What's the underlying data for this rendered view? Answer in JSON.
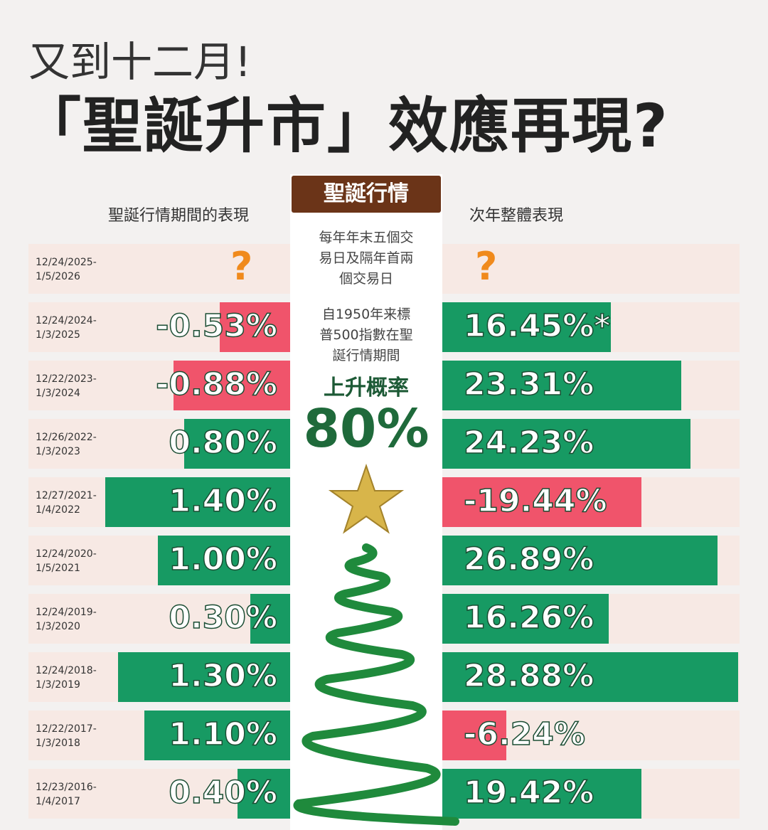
{
  "chart_data": {
    "type": "bar",
    "title": "又到十二月!",
    "subtitle": "「聖誕升市」效應再現?",
    "center_header": "聖誕行情",
    "center_note": "每年年末五個交易日及隔年首兩個交易日",
    "center_note_2": "自1950年来標普500指數在聖誕行情期間",
    "center_stat_label": "上升概率",
    "center_stat": "80%",
    "categories": [
      "12/24/2025-1/5/2026",
      "12/24/2024-1/3/2025",
      "12/22/2023-1/3/2024",
      "12/26/2022-1/3/2023",
      "12/27/2021-1/4/2022",
      "12/24/2020-1/5/2021",
      "12/24/2019-1/3/2020",
      "12/24/2018-1/3/2019",
      "12/22/2017-1/3/2018",
      "12/23/2016-1/4/2017"
    ],
    "series": [
      {
        "name": "聖誕行情期間的表現",
        "color": "#179a63",
        "negative_color": "#f0546b",
        "values": [
          null,
          -0.53,
          -0.88,
          0.8,
          1.4,
          1.0,
          0.3,
          1.3,
          1.1,
          0.4
        ],
        "value_labels": [
          "?",
          "-0.53%",
          "-0.88%",
          "0.80%",
          "1.40%",
          "1.00%",
          "0.30%",
          "1.30%",
          "1.10%",
          "0.40%"
        ]
      },
      {
        "name": "次年整體表現",
        "color": "#179a63",
        "negative_color": "#f0546b",
        "values": [
          null,
          16.45,
          23.31,
          24.23,
          -19.44,
          26.89,
          16.26,
          28.88,
          -6.24,
          19.42
        ],
        "value_labels": [
          "?",
          "16.45%*",
          "23.31%",
          "24.23%",
          "-19.44%",
          "26.89%",
          "16.26%",
          "28.88%",
          "-6.24%",
          "19.42%"
        ]
      }
    ]
  }
}
